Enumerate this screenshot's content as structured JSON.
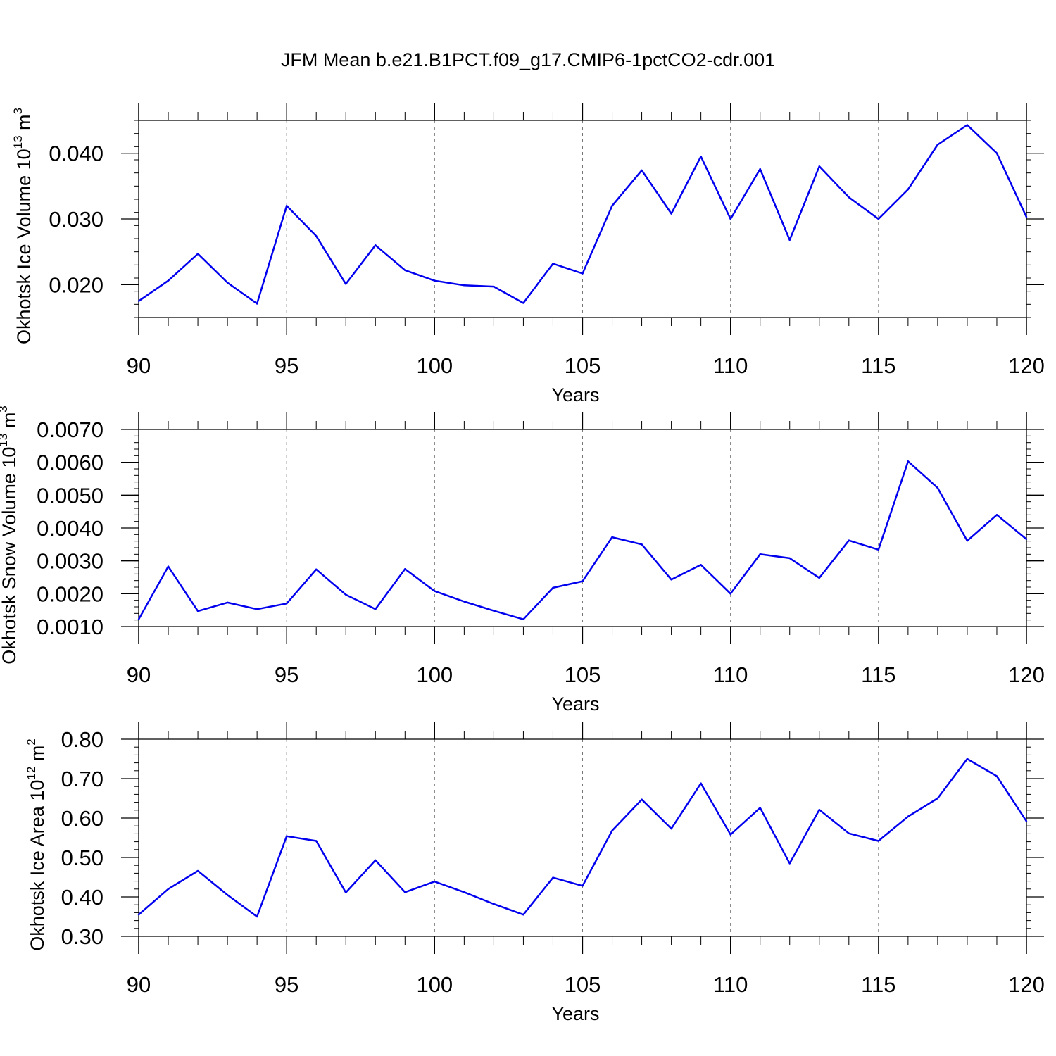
{
  "title": "JFM Mean b.e21.B1PCT.f09_g17.CMIP6-1pctCO2-cdr.001",
  "colors": {
    "line": "#0000ee",
    "axis": "#000000",
    "grid": "#777777"
  },
  "chart_data": [
    {
      "type": "line",
      "id": "ice-volume",
      "xlabel": "Years",
      "ylabel": "Okhotsk Ice Volume 10",
      "ylabel_exp": "13",
      "ylabel_unit": " m",
      "ylabel_unit_exp": "3",
      "xlim": [
        90,
        120
      ],
      "ylim": [
        0.015,
        0.045
      ],
      "xticks": [
        "90",
        "95",
        "100",
        "105",
        "110",
        "115",
        "120"
      ],
      "yticks": [
        "0.020",
        "0.030",
        "0.040"
      ],
      "ytick_values": [
        0.02,
        0.03,
        0.04
      ],
      "yminor_step": 0.002,
      "grid_x": [
        95,
        100,
        105,
        110,
        115
      ],
      "x": [
        90,
        91,
        92,
        93,
        94,
        95,
        96,
        97,
        98,
        99,
        100,
        101,
        102,
        103,
        104,
        105,
        106,
        107,
        108,
        109,
        110,
        111,
        112,
        113,
        114,
        115,
        116,
        117,
        118,
        119,
        120
      ],
      "values": [
        0.0175,
        0.0206,
        0.0247,
        0.0203,
        0.0171,
        0.032,
        0.0274,
        0.0201,
        0.026,
        0.0222,
        0.0206,
        0.0199,
        0.0197,
        0.0172,
        0.0232,
        0.0217,
        0.032,
        0.0374,
        0.0308,
        0.0395,
        0.03,
        0.0376,
        0.0268,
        0.038,
        0.0333,
        0.03,
        0.0345,
        0.0413,
        0.0443,
        0.04,
        0.0303
      ]
    },
    {
      "type": "line",
      "id": "snow-volume",
      "xlabel": "Years",
      "ylabel": "Okhotsk Snow Volume 10",
      "ylabel_exp": "13",
      "ylabel_unit": " m",
      "ylabel_unit_exp": "3",
      "xlim": [
        90,
        120
      ],
      "ylim": [
        0.001,
        0.007
      ],
      "xticks": [
        "90",
        "95",
        "100",
        "105",
        "110",
        "115",
        "120"
      ],
      "yticks": [
        "0.0010",
        "0.0020",
        "0.0030",
        "0.0040",
        "0.0050",
        "0.0060",
        "0.0070"
      ],
      "ytick_values": [
        0.001,
        0.002,
        0.003,
        0.004,
        0.005,
        0.006,
        0.007
      ],
      "yminor_step": 0.0002,
      "grid_x": [
        95,
        100,
        105,
        110,
        115
      ],
      "x": [
        90,
        91,
        92,
        93,
        94,
        95,
        96,
        97,
        98,
        99,
        100,
        101,
        102,
        103,
        104,
        105,
        106,
        107,
        108,
        109,
        110,
        111,
        112,
        113,
        114,
        115,
        116,
        117,
        118,
        119,
        120
      ],
      "values": [
        0.00122,
        0.00283,
        0.00147,
        0.00173,
        0.00153,
        0.0017,
        0.00274,
        0.00197,
        0.00153,
        0.00275,
        0.00208,
        0.00176,
        0.00148,
        0.00122,
        0.00218,
        0.00238,
        0.00372,
        0.0035,
        0.00243,
        0.00288,
        0.002,
        0.0032,
        0.00308,
        0.00248,
        0.00362,
        0.00334,
        0.00603,
        0.00522,
        0.00361,
        0.0044,
        0.00366
      ]
    },
    {
      "type": "line",
      "id": "ice-area",
      "xlabel": "Years",
      "ylabel": "Okhotsk Ice Area 10",
      "ylabel_exp": "12",
      "ylabel_unit": " m",
      "ylabel_unit_exp": "2",
      "xlim": [
        90,
        120
      ],
      "ylim": [
        0.3,
        0.8
      ],
      "xticks": [
        "90",
        "95",
        "100",
        "105",
        "110",
        "115",
        "120"
      ],
      "yticks": [
        "0.30",
        "0.40",
        "0.50",
        "0.60",
        "0.70",
        "0.80"
      ],
      "ytick_values": [
        0.3,
        0.4,
        0.5,
        0.6,
        0.7,
        0.8
      ],
      "yminor_step": 0.02,
      "grid_x": [
        95,
        100,
        105,
        110,
        115
      ],
      "x": [
        90,
        91,
        92,
        93,
        94,
        95,
        96,
        97,
        98,
        99,
        100,
        101,
        102,
        103,
        104,
        105,
        106,
        107,
        108,
        109,
        110,
        111,
        112,
        113,
        114,
        115,
        116,
        117,
        118,
        119,
        120
      ],
      "values": [
        0.355,
        0.42,
        0.466,
        0.405,
        0.35,
        0.554,
        0.542,
        0.411,
        0.493,
        0.412,
        0.439,
        0.412,
        0.382,
        0.355,
        0.449,
        0.428,
        0.568,
        0.647,
        0.573,
        0.688,
        0.558,
        0.626,
        0.485,
        0.621,
        0.561,
        0.542,
        0.604,
        0.65,
        0.75,
        0.706,
        0.592
      ]
    }
  ]
}
